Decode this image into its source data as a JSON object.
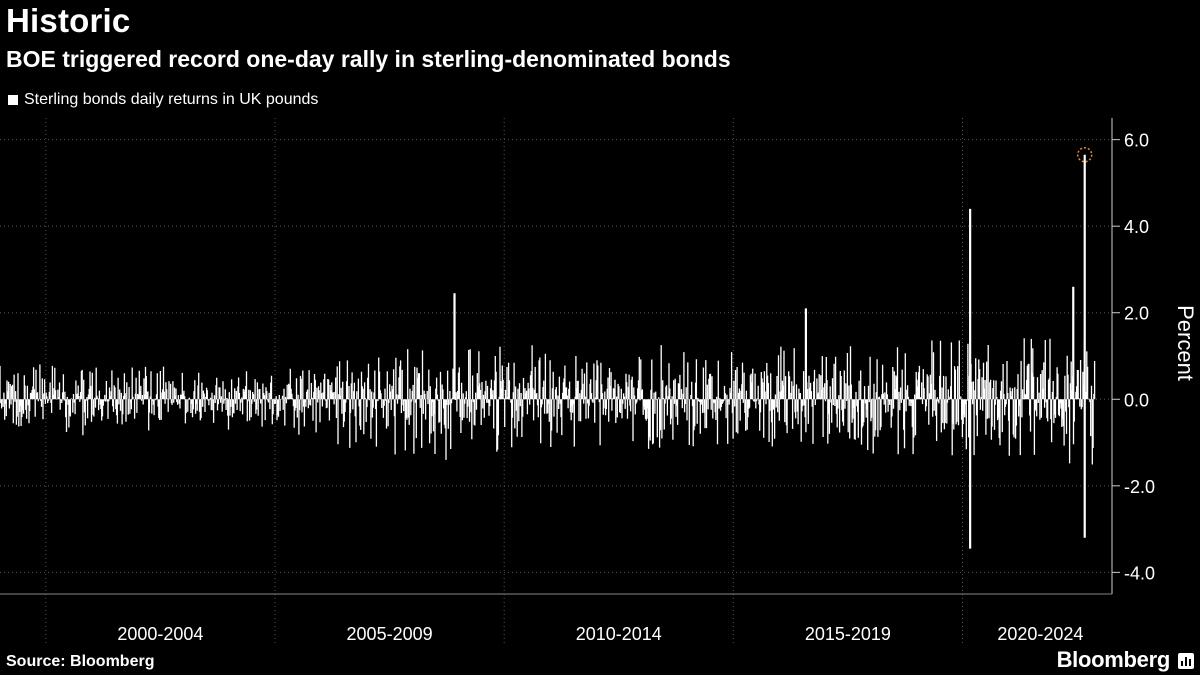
{
  "header": {
    "title": "Historic",
    "subtitle": "BOE triggered record one-day rally in sterling-denominated bonds"
  },
  "legend": {
    "label": "Sterling bonds daily returns in UK pounds"
  },
  "footer": {
    "source": "Source: Bloomberg",
    "brand": "Bloomberg"
  },
  "colors": {
    "background": "#000000",
    "series": "#ffffff",
    "grid": "#555555",
    "highlight": "#f08c1a"
  },
  "chart_data": {
    "type": "bar",
    "ylabel": "Percent",
    "ylim": [
      -4.5,
      6.5
    ],
    "yticks": [
      -4.0,
      -2.0,
      0.0,
      2.0,
      4.0,
      6.0
    ],
    "ytick_labels": [
      "-4.0",
      "-2.0",
      "0.0",
      "2.0",
      "4.0",
      "6.0"
    ],
    "x_period_labels": [
      "2000-2004",
      "2005-2009",
      "2010-2014",
      "2015-2019",
      "2020-2024"
    ],
    "xlim": [
      1999.0,
      2023.0
    ],
    "grid": true,
    "legend_position": "top-left",
    "notable_points": [
      {
        "date": "2008-12",
        "value": 2.45
      },
      {
        "date": "2016-08",
        "value": 2.1
      },
      {
        "date": "2020-03",
        "value": 4.4
      },
      {
        "date": "2020-03",
        "value": -3.45
      },
      {
        "date": "2022-06",
        "value": 2.6
      },
      {
        "date": "2022-09",
        "value": -3.2
      },
      {
        "date": "2022-09",
        "value": 5.65,
        "highlighted": true
      }
    ],
    "volatility_by_year": [
      {
        "year": 1999,
        "typical_range": [
          -0.9,
          0.9
        ]
      },
      {
        "year": 2005,
        "typical_range": [
          -0.7,
          0.7
        ]
      },
      {
        "year": 2008,
        "typical_range": [
          -1.5,
          1.2
        ]
      },
      {
        "year": 2011,
        "typical_range": [
          -1.2,
          1.3
        ]
      },
      {
        "year": 2016,
        "typical_range": [
          -1.1,
          1.3
        ]
      },
      {
        "year": 2020,
        "typical_range": [
          -1.4,
          1.5
        ]
      },
      {
        "year": 2022,
        "typical_range": [
          -1.5,
          1.6
        ]
      }
    ]
  }
}
